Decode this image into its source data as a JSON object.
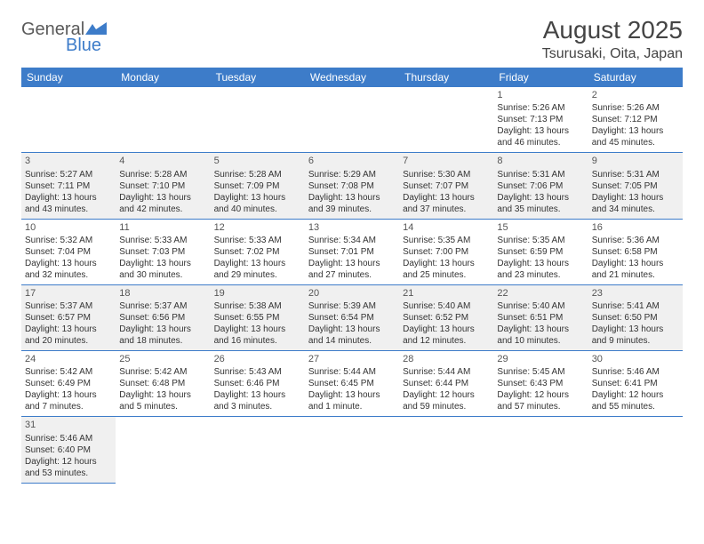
{
  "logo": {
    "general": "General",
    "blue": "Blue",
    "accent_color": "#3d7cc9"
  },
  "title": "August 2025",
  "location": "Tsurusaki, Oita, Japan",
  "colors": {
    "header_bg": "#3d7cc9",
    "header_fg": "#ffffff",
    "row_alt_bg": "#f0f0f0",
    "row_bg": "#ffffff",
    "border": "#3d7cc9",
    "text": "#333333"
  },
  "day_headers": [
    "Sunday",
    "Monday",
    "Tuesday",
    "Wednesday",
    "Thursday",
    "Friday",
    "Saturday"
  ],
  "weeks": [
    [
      null,
      null,
      null,
      null,
      null,
      {
        "n": "1",
        "sr": "Sunrise: 5:26 AM",
        "ss": "Sunset: 7:13 PM",
        "dl1": "Daylight: 13 hours",
        "dl2": "and 46 minutes."
      },
      {
        "n": "2",
        "sr": "Sunrise: 5:26 AM",
        "ss": "Sunset: 7:12 PM",
        "dl1": "Daylight: 13 hours",
        "dl2": "and 45 minutes."
      }
    ],
    [
      {
        "n": "3",
        "sr": "Sunrise: 5:27 AM",
        "ss": "Sunset: 7:11 PM",
        "dl1": "Daylight: 13 hours",
        "dl2": "and 43 minutes."
      },
      {
        "n": "4",
        "sr": "Sunrise: 5:28 AM",
        "ss": "Sunset: 7:10 PM",
        "dl1": "Daylight: 13 hours",
        "dl2": "and 42 minutes."
      },
      {
        "n": "5",
        "sr": "Sunrise: 5:28 AM",
        "ss": "Sunset: 7:09 PM",
        "dl1": "Daylight: 13 hours",
        "dl2": "and 40 minutes."
      },
      {
        "n": "6",
        "sr": "Sunrise: 5:29 AM",
        "ss": "Sunset: 7:08 PM",
        "dl1": "Daylight: 13 hours",
        "dl2": "and 39 minutes."
      },
      {
        "n": "7",
        "sr": "Sunrise: 5:30 AM",
        "ss": "Sunset: 7:07 PM",
        "dl1": "Daylight: 13 hours",
        "dl2": "and 37 minutes."
      },
      {
        "n": "8",
        "sr": "Sunrise: 5:31 AM",
        "ss": "Sunset: 7:06 PM",
        "dl1": "Daylight: 13 hours",
        "dl2": "and 35 minutes."
      },
      {
        "n": "9",
        "sr": "Sunrise: 5:31 AM",
        "ss": "Sunset: 7:05 PM",
        "dl1": "Daylight: 13 hours",
        "dl2": "and 34 minutes."
      }
    ],
    [
      {
        "n": "10",
        "sr": "Sunrise: 5:32 AM",
        "ss": "Sunset: 7:04 PM",
        "dl1": "Daylight: 13 hours",
        "dl2": "and 32 minutes."
      },
      {
        "n": "11",
        "sr": "Sunrise: 5:33 AM",
        "ss": "Sunset: 7:03 PM",
        "dl1": "Daylight: 13 hours",
        "dl2": "and 30 minutes."
      },
      {
        "n": "12",
        "sr": "Sunrise: 5:33 AM",
        "ss": "Sunset: 7:02 PM",
        "dl1": "Daylight: 13 hours",
        "dl2": "and 29 minutes."
      },
      {
        "n": "13",
        "sr": "Sunrise: 5:34 AM",
        "ss": "Sunset: 7:01 PM",
        "dl1": "Daylight: 13 hours",
        "dl2": "and 27 minutes."
      },
      {
        "n": "14",
        "sr": "Sunrise: 5:35 AM",
        "ss": "Sunset: 7:00 PM",
        "dl1": "Daylight: 13 hours",
        "dl2": "and 25 minutes."
      },
      {
        "n": "15",
        "sr": "Sunrise: 5:35 AM",
        "ss": "Sunset: 6:59 PM",
        "dl1": "Daylight: 13 hours",
        "dl2": "and 23 minutes."
      },
      {
        "n": "16",
        "sr": "Sunrise: 5:36 AM",
        "ss": "Sunset: 6:58 PM",
        "dl1": "Daylight: 13 hours",
        "dl2": "and 21 minutes."
      }
    ],
    [
      {
        "n": "17",
        "sr": "Sunrise: 5:37 AM",
        "ss": "Sunset: 6:57 PM",
        "dl1": "Daylight: 13 hours",
        "dl2": "and 20 minutes."
      },
      {
        "n": "18",
        "sr": "Sunrise: 5:37 AM",
        "ss": "Sunset: 6:56 PM",
        "dl1": "Daylight: 13 hours",
        "dl2": "and 18 minutes."
      },
      {
        "n": "19",
        "sr": "Sunrise: 5:38 AM",
        "ss": "Sunset: 6:55 PM",
        "dl1": "Daylight: 13 hours",
        "dl2": "and 16 minutes."
      },
      {
        "n": "20",
        "sr": "Sunrise: 5:39 AM",
        "ss": "Sunset: 6:54 PM",
        "dl1": "Daylight: 13 hours",
        "dl2": "and 14 minutes."
      },
      {
        "n": "21",
        "sr": "Sunrise: 5:40 AM",
        "ss": "Sunset: 6:52 PM",
        "dl1": "Daylight: 13 hours",
        "dl2": "and 12 minutes."
      },
      {
        "n": "22",
        "sr": "Sunrise: 5:40 AM",
        "ss": "Sunset: 6:51 PM",
        "dl1": "Daylight: 13 hours",
        "dl2": "and 10 minutes."
      },
      {
        "n": "23",
        "sr": "Sunrise: 5:41 AM",
        "ss": "Sunset: 6:50 PM",
        "dl1": "Daylight: 13 hours",
        "dl2": "and 9 minutes."
      }
    ],
    [
      {
        "n": "24",
        "sr": "Sunrise: 5:42 AM",
        "ss": "Sunset: 6:49 PM",
        "dl1": "Daylight: 13 hours",
        "dl2": "and 7 minutes."
      },
      {
        "n": "25",
        "sr": "Sunrise: 5:42 AM",
        "ss": "Sunset: 6:48 PM",
        "dl1": "Daylight: 13 hours",
        "dl2": "and 5 minutes."
      },
      {
        "n": "26",
        "sr": "Sunrise: 5:43 AM",
        "ss": "Sunset: 6:46 PM",
        "dl1": "Daylight: 13 hours",
        "dl2": "and 3 minutes."
      },
      {
        "n": "27",
        "sr": "Sunrise: 5:44 AM",
        "ss": "Sunset: 6:45 PM",
        "dl1": "Daylight: 13 hours",
        "dl2": "and 1 minute."
      },
      {
        "n": "28",
        "sr": "Sunrise: 5:44 AM",
        "ss": "Sunset: 6:44 PM",
        "dl1": "Daylight: 12 hours",
        "dl2": "and 59 minutes."
      },
      {
        "n": "29",
        "sr": "Sunrise: 5:45 AM",
        "ss": "Sunset: 6:43 PM",
        "dl1": "Daylight: 12 hours",
        "dl2": "and 57 minutes."
      },
      {
        "n": "30",
        "sr": "Sunrise: 5:46 AM",
        "ss": "Sunset: 6:41 PM",
        "dl1": "Daylight: 12 hours",
        "dl2": "and 55 minutes."
      }
    ],
    [
      {
        "n": "31",
        "sr": "Sunrise: 5:46 AM",
        "ss": "Sunset: 6:40 PM",
        "dl1": "Daylight: 12 hours",
        "dl2": "and 53 minutes."
      },
      null,
      null,
      null,
      null,
      null,
      null
    ]
  ]
}
